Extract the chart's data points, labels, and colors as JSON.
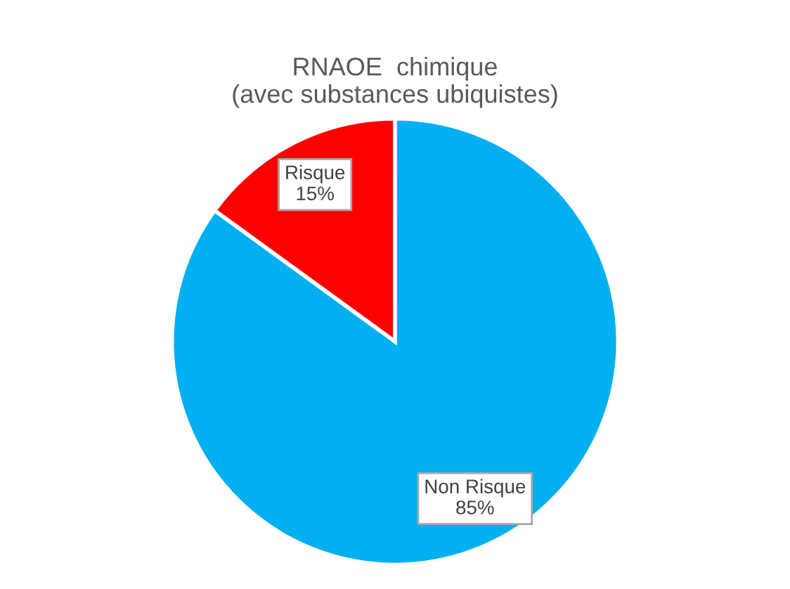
{
  "chart_data": {
    "type": "pie",
    "title": "RNAOE  chimique\n(avec substances ubiquistes)",
    "categories": [
      "Risque",
      "Non Risque"
    ],
    "values": [
      15,
      85
    ],
    "value_labels": [
      "15%",
      "85%"
    ],
    "colors": [
      "#ff0000",
      "#00b0f0"
    ],
    "legend": false
  }
}
